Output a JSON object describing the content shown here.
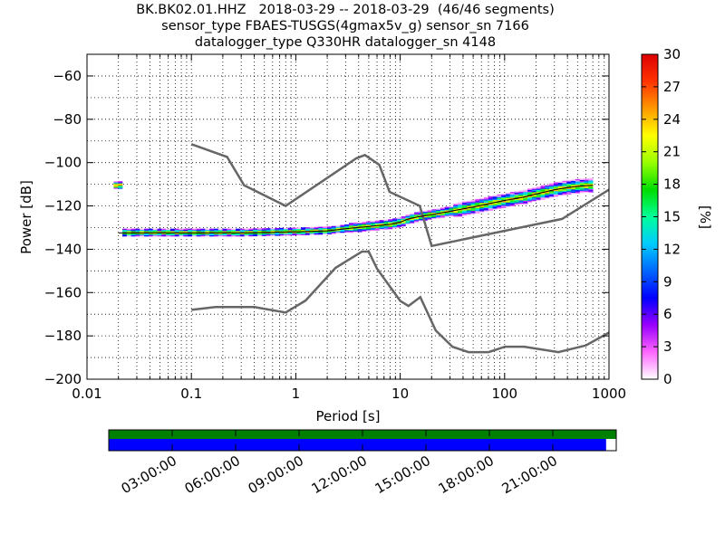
{
  "title_lines": [
    "BK.BK02.01.HHZ   2018-03-29 -- 2018-03-29  (46/46 segments)",
    "sensor_type FBAES-TUSGS(4gmax5v_g) sensor_sn 7166",
    "datalogger_type Q330HR datalogger_sn 4148"
  ],
  "chart_data": {
    "type": "heatmap",
    "title": "BK.BK02.01.HHZ   2018-03-29 -- 2018-03-29  (46/46 segments)",
    "xlabel": "Period [s]",
    "ylabel": "Power [dB]",
    "x_scale": "log",
    "xlim": [
      0.01,
      1000
    ],
    "ylim": [
      -200,
      -50
    ],
    "x_ticks": [
      0.01,
      0.1,
      1,
      10,
      100,
      1000
    ],
    "x_tick_labels": [
      "0.01",
      "0.1",
      "1",
      "10",
      "100",
      "1000"
    ],
    "y_ticks": [
      -200,
      -180,
      -160,
      -140,
      -120,
      -100,
      -80,
      -60
    ],
    "y_tick_labels": [
      "−200",
      "−180",
      "−160",
      "−140",
      "−120",
      "−100",
      "−80",
      "−60"
    ],
    "grid": "dotted",
    "colorbar": {
      "label": "[%]",
      "range": [
        0,
        30
      ],
      "ticks": [
        0,
        3,
        6,
        9,
        12,
        15,
        18,
        21,
        24,
        27,
        30
      ],
      "colors": [
        "#ffffff",
        "#ff66ff",
        "#9900ff",
        "#0000ff",
        "#0066ff",
        "#00ccff",
        "#00ff99",
        "#00dd00",
        "#99ff00",
        "#ffff00",
        "#ff9900",
        "#ff3300",
        "#dd0000"
      ]
    },
    "noise_models": [
      {
        "name": "NHNM",
        "x": [
          0.1,
          0.22,
          0.32,
          0.8,
          3.8,
          4.6,
          6.3,
          7.9,
          15.4,
          20,
          354.8,
          1000
        ],
        "y": [
          -91.5,
          -97.4,
          -110.5,
          -120,
          -98,
          -96.5,
          -101,
          -113.5,
          -120,
          -138.5,
          -126,
          -112.5
        ]
      },
      {
        "name": "NLNM",
        "x": [
          0.1,
          0.17,
          0.4,
          0.8,
          1.24,
          2.4,
          4.3,
          5,
          6,
          10,
          12,
          15.6,
          21.9,
          31.6,
          45,
          70,
          101,
          154,
          328,
          600,
          1000
        ],
        "y": [
          -168,
          -166.7,
          -166.7,
          -169.2,
          -163.7,
          -148.6,
          -141.1,
          -141.1,
          -149,
          -163.8,
          -166.2,
          -162.1,
          -177.5,
          -185,
          -187.5,
          -187.5,
          -185,
          -185,
          -187.5,
          -184.4,
          -178.5
        ]
      }
    ],
    "psd_mode": {
      "period": [
        0.02,
        0.05,
        0.1,
        0.3,
        1,
        2,
        3,
        5,
        8,
        10,
        12,
        15,
        20,
        30,
        50,
        70,
        100,
        150,
        200,
        300,
        400,
        500,
        700
      ],
      "power": [
        -132.5,
        -132.5,
        -132.5,
        -132.5,
        -132,
        -131.5,
        -130.5,
        -129.5,
        -128.5,
        -127.5,
        -126,
        -125,
        -124,
        -122.5,
        -120.5,
        -119,
        -117.5,
        -116,
        -114.5,
        -112.5,
        -111.5,
        -111,
        -110.5
      ]
    },
    "data_coverage": {
      "time_ticks": [
        "03:00:00",
        "06:00:00",
        "09:00:00",
        "12:00:00",
        "15:00:00",
        "18:00:00",
        "21:00:00"
      ],
      "data_available_fraction": 0.98,
      "bar_colors": [
        "#008000",
        "#0000ff"
      ]
    }
  }
}
